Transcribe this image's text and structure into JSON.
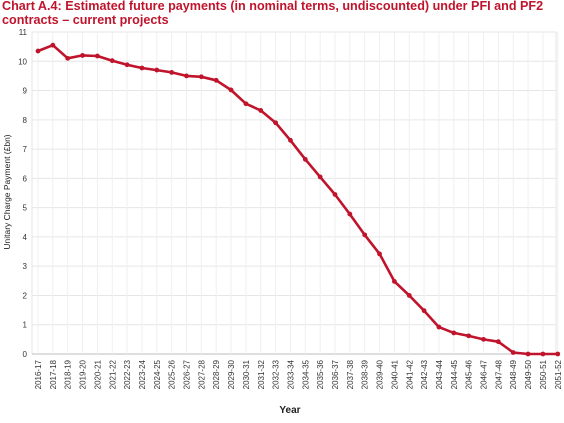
{
  "chart_data": {
    "type": "line",
    "title": "Chart A.4: Estimated future payments (in nominal terms, undiscounted) under PFI and PF2 contracts – current projects",
    "xlabel": "Year",
    "ylabel": "Unitary Charge Payment (£bn)",
    "ylim": [
      0,
      11
    ],
    "yticks": [
      0,
      1,
      2,
      3,
      4,
      5,
      6,
      7,
      8,
      9,
      10,
      11
    ],
    "grid": true,
    "line_color": "#c0142c",
    "categories": [
      "2016-17",
      "2017-18",
      "2018-19",
      "2019-20",
      "2020-21",
      "2021-22",
      "2022-23",
      "2023-24",
      "2024-25",
      "2025-26",
      "2026-27",
      "2027-28",
      "2028-29",
      "2029-30",
      "2030-31",
      "2031-32",
      "2032-33",
      "2033-34",
      "2034-35",
      "2035-36",
      "2036-37",
      "2037-38",
      "2038-39",
      "2039-40",
      "2040-41",
      "2041-42",
      "2042-43",
      "2043-44",
      "2044-45",
      "2045-46",
      "2046-47",
      "2047-48",
      "2048-49",
      "2049-50",
      "2050-51",
      "2051-52"
    ],
    "series": [
      {
        "values": [
          10.35,
          10.55,
          10.1,
          10.2,
          10.18,
          10.02,
          9.88,
          9.77,
          9.7,
          9.62,
          9.5,
          9.47,
          9.35,
          9.02,
          8.55,
          8.32,
          7.9,
          7.3,
          6.65,
          6.05,
          5.45,
          4.78,
          4.07,
          3.42,
          2.48,
          2.0,
          1.48,
          0.92,
          0.72,
          0.62,
          0.5,
          0.42,
          0.05,
          0.0,
          0.0,
          0.0
        ]
      }
    ]
  }
}
